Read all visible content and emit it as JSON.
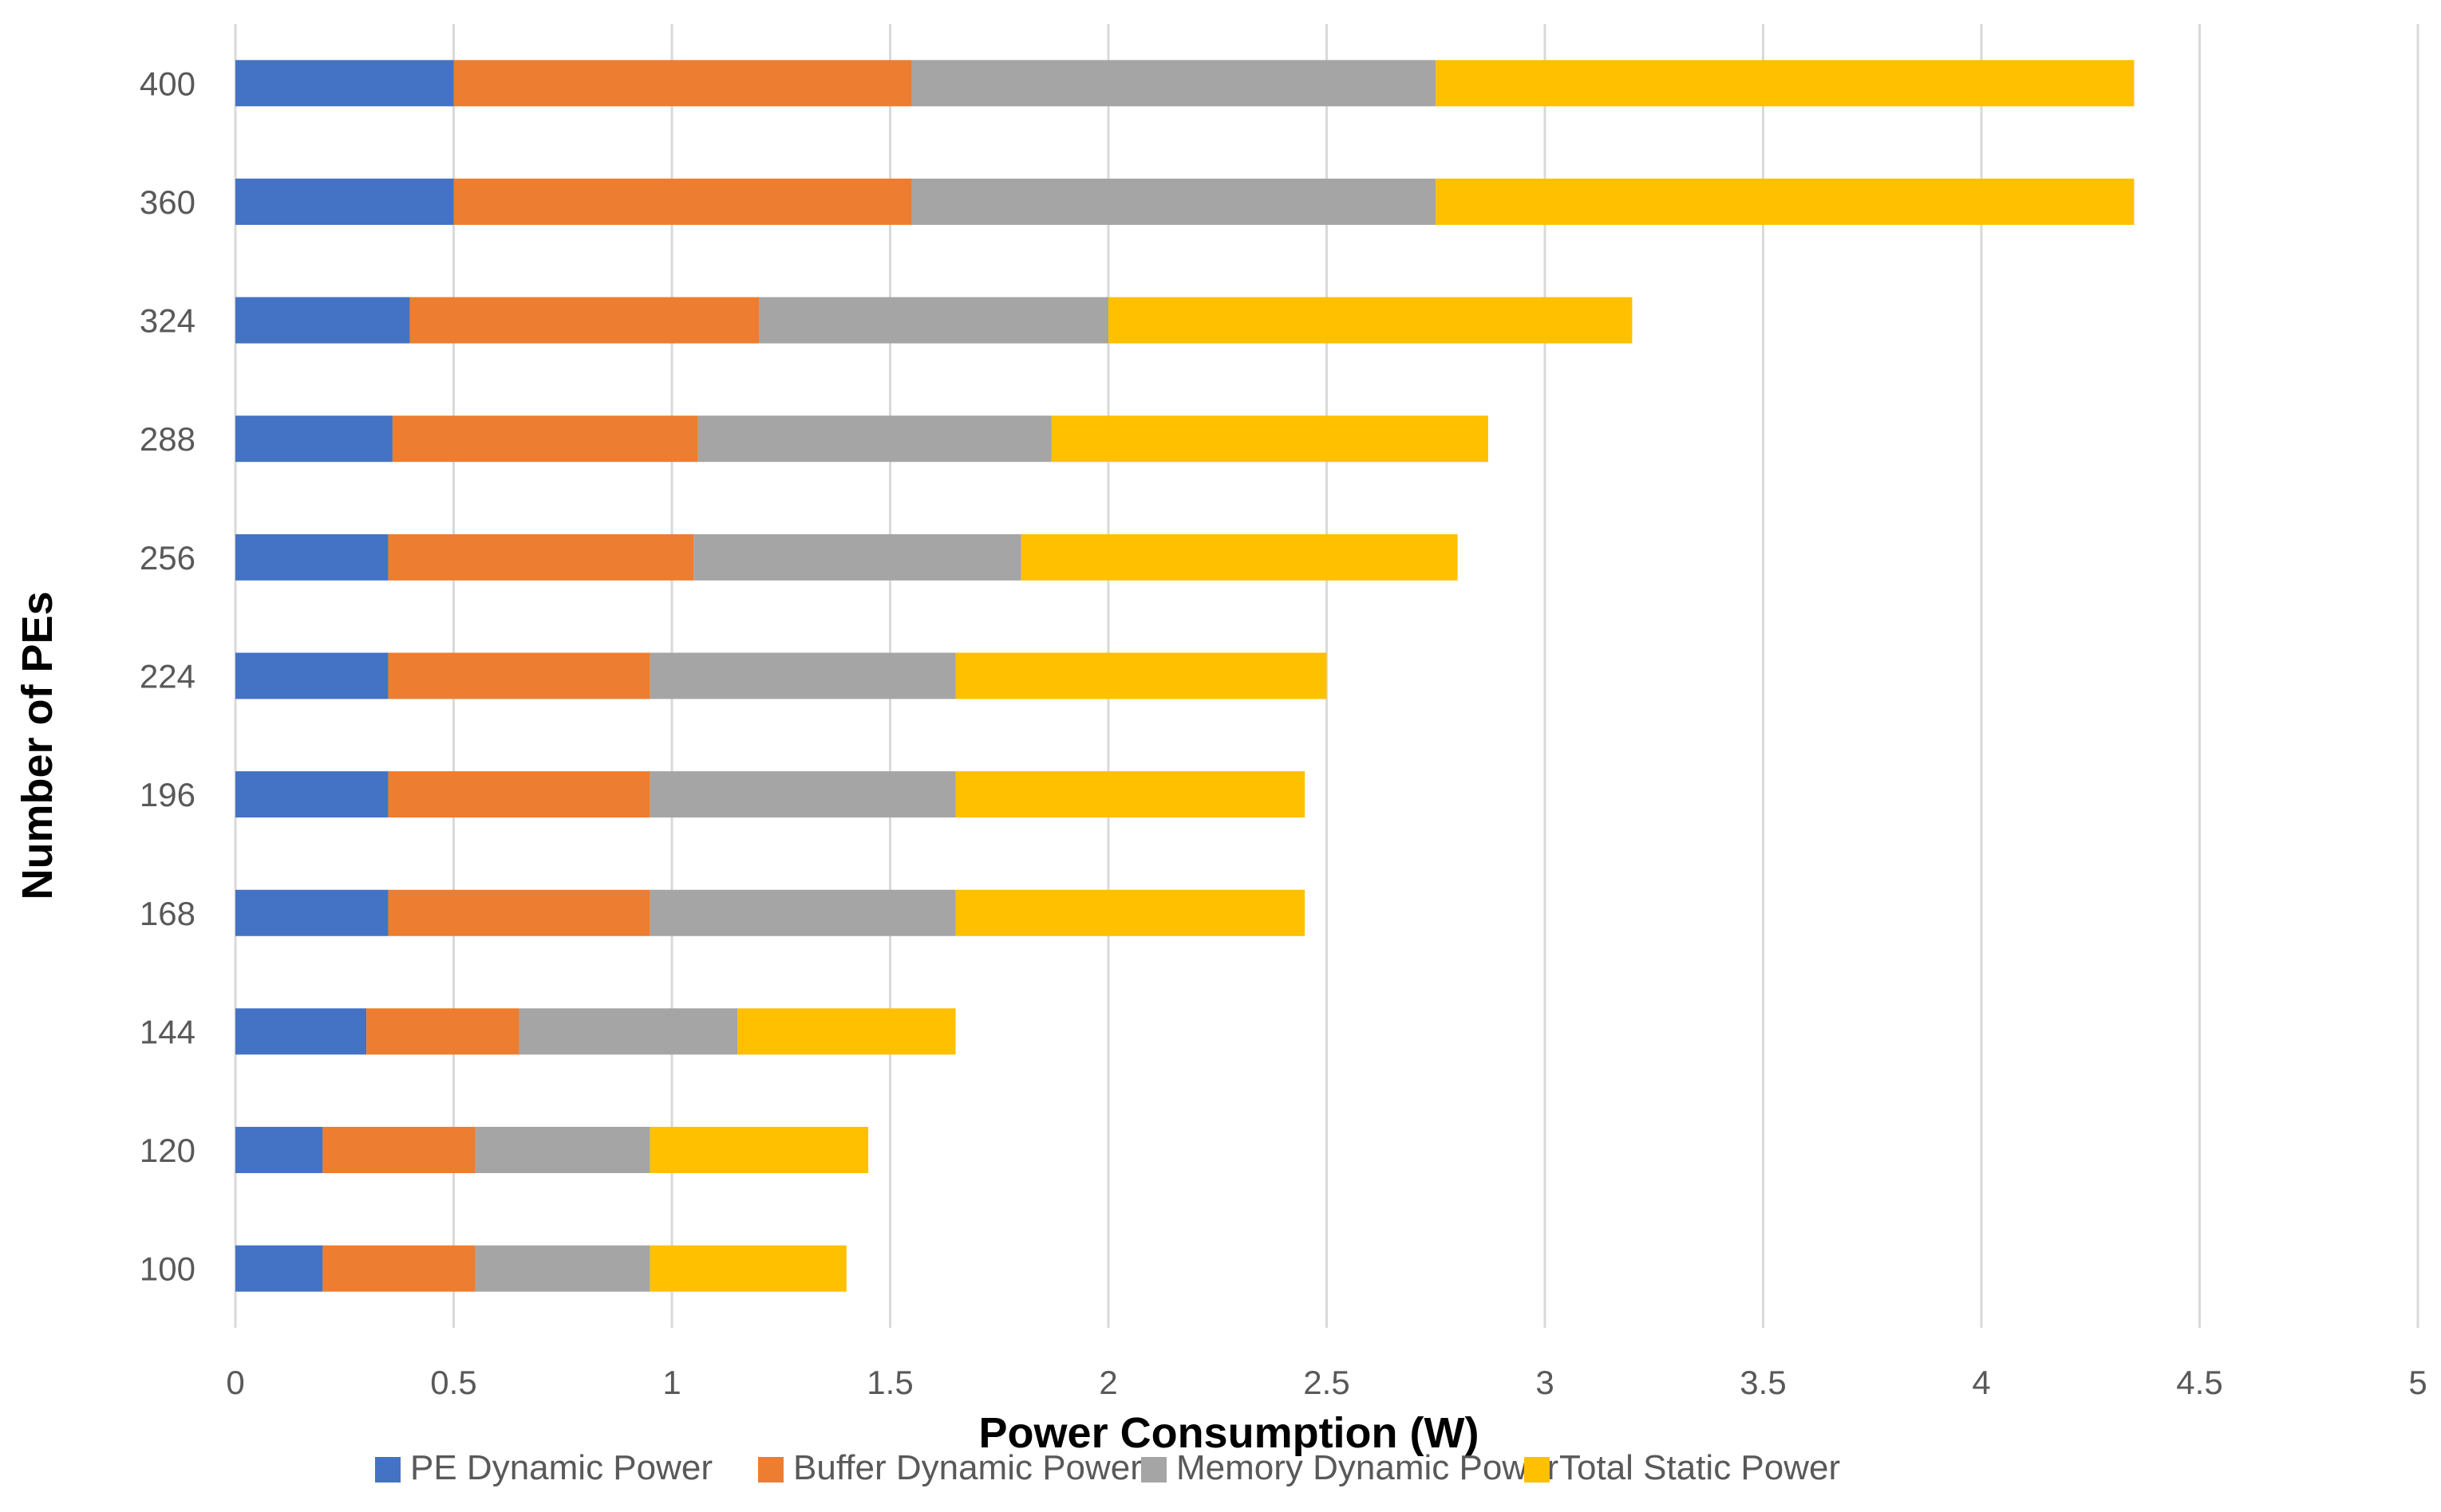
{
  "chart_data": {
    "type": "bar",
    "orientation": "horizontal",
    "stacked": true,
    "title": "",
    "xlabel": "Power Consumption (W)",
    "ylabel": "Number of PEs",
    "xlim": [
      0,
      5
    ],
    "xticks": [
      "0",
      "0.5",
      "1",
      "1.5",
      "2",
      "2.5",
      "3",
      "3.5",
      "4",
      "4.5",
      "5"
    ],
    "grid": "vertical",
    "legend_position": "bottom",
    "categories": [
      "100",
      "120",
      "144",
      "168",
      "196",
      "224",
      "256",
      "288",
      "324",
      "360",
      "400"
    ],
    "series": [
      {
        "name": "PE Dynamic Power",
        "color": "#4472C4",
        "values": [
          0.2,
          0.2,
          0.3,
          0.35,
          0.35,
          0.35,
          0.35,
          0.36,
          0.4,
          0.5,
          0.5
        ]
      },
      {
        "name": "Buffer Dynamic Power",
        "color": "#ED7D31",
        "values": [
          0.35,
          0.35,
          0.35,
          0.6,
          0.6,
          0.6,
          0.7,
          0.7,
          0.8,
          1.05,
          1.05
        ]
      },
      {
        "name": "Memory Dynamic Power",
        "color": "#A5A5A5",
        "values": [
          0.4,
          0.4,
          0.5,
          0.7,
          0.7,
          0.7,
          0.75,
          0.81,
          0.8,
          1.2,
          1.2
        ]
      },
      {
        "name": "Total Static Power",
        "color": "#FFC000",
        "values": [
          0.45,
          0.5,
          0.5,
          0.8,
          0.8,
          0.85,
          1.0,
          1.0,
          1.2,
          1.6,
          1.6
        ]
      }
    ],
    "legend_labels": [
      "PE Dynamic Power",
      "Buffer Dynamic Power",
      "Memory Dynamic Power",
      "Total Static Power"
    ]
  }
}
